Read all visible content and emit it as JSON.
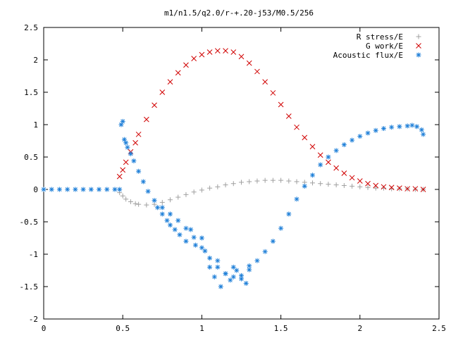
{
  "chart_data": {
    "type": "scatter",
    "title": "m1/n1.5/q2.0/r-+.20-j53/M0.5/256",
    "xlabel": "",
    "ylabel": "",
    "xlim": [
      0,
      2.5
    ],
    "ylim": [
      -2,
      2.5
    ],
    "x_ticks": [
      "0",
      "0.5",
      "1",
      "1.5",
      "2",
      "2.5"
    ],
    "y_ticks": [
      "-2",
      "-1.5",
      "-1",
      "-0.5",
      "0",
      "0.5",
      "1",
      "1.5",
      "2",
      "2.5"
    ],
    "grid": false,
    "legend_position": "top-right",
    "series": [
      {
        "name": "R stress/E",
        "marker": "plus",
        "color": "#a0a0a0",
        "x": [
          0.48,
          0.5,
          0.52,
          0.55,
          0.58,
          0.6,
          0.65,
          0.7,
          0.75,
          0.8,
          0.85,
          0.9,
          0.95,
          1.0,
          1.05,
          1.1,
          1.15,
          1.2,
          1.25,
          1.3,
          1.35,
          1.4,
          1.45,
          1.5,
          1.55,
          1.6,
          1.65,
          1.7,
          1.75,
          1.8,
          1.85,
          1.9,
          1.95,
          2.0,
          2.05,
          2.1,
          2.15,
          2.2,
          2.25,
          2.3,
          2.35,
          2.4
        ],
        "y": [
          -0.05,
          -0.1,
          -0.15,
          -0.19,
          -0.22,
          -0.23,
          -0.24,
          -0.23,
          -0.2,
          -0.16,
          -0.12,
          -0.08,
          -0.04,
          -0.01,
          0.02,
          0.04,
          0.07,
          0.09,
          0.11,
          0.12,
          0.13,
          0.14,
          0.14,
          0.14,
          0.13,
          0.12,
          0.11,
          0.1,
          0.09,
          0.08,
          0.07,
          0.06,
          0.05,
          0.04,
          0.03,
          0.02,
          0.02,
          0.01,
          0.01,
          0.01,
          0.0,
          0.0
        ]
      },
      {
        "name": "G work/E",
        "marker": "cross",
        "color": "#d00000",
        "x": [
          0.48,
          0.5,
          0.52,
          0.55,
          0.58,
          0.6,
          0.65,
          0.7,
          0.75,
          0.8,
          0.85,
          0.9,
          0.95,
          1.0,
          1.05,
          1.1,
          1.15,
          1.2,
          1.25,
          1.3,
          1.35,
          1.4,
          1.45,
          1.5,
          1.55,
          1.6,
          1.65,
          1.7,
          1.75,
          1.8,
          1.85,
          1.9,
          1.95,
          2.0,
          2.05,
          2.1,
          2.15,
          2.2,
          2.25,
          2.3,
          2.35,
          2.4
        ],
        "y": [
          0.2,
          0.3,
          0.42,
          0.58,
          0.72,
          0.85,
          1.08,
          1.3,
          1.5,
          1.66,
          1.8,
          1.92,
          2.02,
          2.08,
          2.12,
          2.14,
          2.14,
          2.12,
          2.05,
          1.95,
          1.82,
          1.66,
          1.49,
          1.31,
          1.13,
          0.96,
          0.8,
          0.66,
          0.53,
          0.42,
          0.33,
          0.25,
          0.18,
          0.13,
          0.09,
          0.06,
          0.04,
          0.03,
          0.02,
          0.01,
          0.01,
          0.0
        ]
      },
      {
        "name": "Acoustic flux/E",
        "marker": "star",
        "color": "#1e7fd8",
        "x": [
          0.0,
          0.05,
          0.1,
          0.15,
          0.2,
          0.25,
          0.3,
          0.35,
          0.4,
          0.45,
          0.48,
          0.49,
          0.5,
          0.51,
          0.52,
          0.53,
          0.55,
          0.57,
          0.6,
          0.63,
          0.66,
          0.7,
          0.75,
          0.8,
          0.85,
          0.9,
          0.95,
          1.0,
          1.05,
          1.1,
          1.15,
          1.2,
          1.25,
          1.3,
          1.35,
          1.4,
          1.45,
          1.5,
          1.55,
          1.6,
          1.65,
          1.7,
          1.75,
          1.8,
          1.85,
          1.9,
          1.95,
          2.0,
          2.05,
          2.1,
          2.15,
          2.2,
          2.25,
          2.3,
          2.33,
          2.36,
          2.39,
          2.4,
          0.72,
          0.75,
          0.78,
          0.8,
          0.83,
          0.86,
          0.9,
          0.93,
          0.96,
          1.0,
          1.02,
          1.05,
          1.08,
          1.1,
          1.12,
          1.15,
          1.18,
          1.2,
          1.22,
          1.25,
          1.28,
          1.3
        ],
        "y": [
          0.0,
          0.0,
          0.0,
          0.0,
          0.0,
          0.0,
          0.0,
          0.0,
          0.0,
          0.0,
          0.0,
          1.0,
          1.05,
          0.77,
          0.72,
          0.65,
          0.55,
          0.44,
          0.28,
          0.12,
          -0.03,
          -0.17,
          -0.28,
          -0.38,
          -0.48,
          -0.6,
          -0.74,
          -0.9,
          -1.06,
          -1.2,
          -1.3,
          -1.35,
          -1.33,
          -1.24,
          -1.1,
          -0.96,
          -0.8,
          -0.6,
          -0.38,
          -0.15,
          0.05,
          0.22,
          0.38,
          0.5,
          0.6,
          0.69,
          0.76,
          0.82,
          0.87,
          0.91,
          0.94,
          0.96,
          0.97,
          0.98,
          0.99,
          0.97,
          0.92,
          0.85,
          -0.28,
          -0.38,
          -0.48,
          -0.55,
          -0.62,
          -0.7,
          -0.8,
          -0.62,
          -0.86,
          -0.75,
          -0.95,
          -1.2,
          -1.35,
          -1.1,
          -1.5,
          -1.3,
          -1.4,
          -1.2,
          -1.25,
          -1.38,
          -1.45,
          -1.18
        ]
      }
    ]
  }
}
